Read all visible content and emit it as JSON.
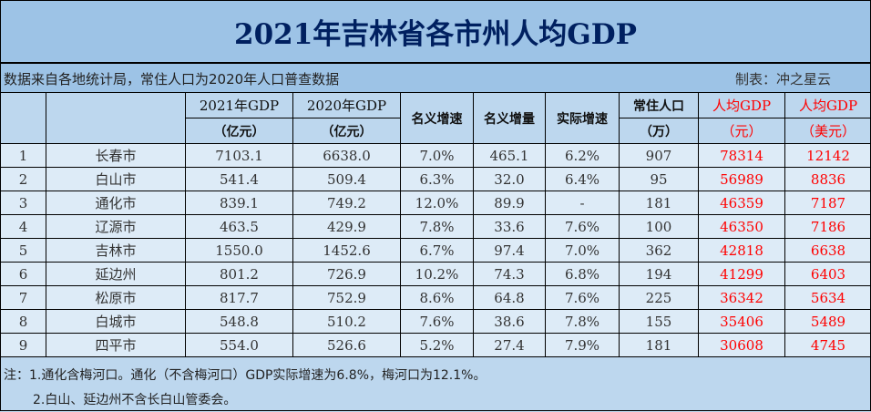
{
  "title": "2021年吉林省各市州人均GDP",
  "source_note": "数据来自各地统计局，常住人口为2020年人口普查数据",
  "author": "制表：冲之星云",
  "headers": {
    "gdp2021": [
      "2021年GDP",
      "（亿元）"
    ],
    "gdp2020": [
      "2020年GDP",
      "（亿元）"
    ],
    "nominal_growth": "名义增速",
    "nominal_increase": "名义增量",
    "real_growth": "实际增速",
    "population": [
      "常住人口",
      "（万）"
    ],
    "per_capita_cny": [
      "人均GDP",
      "（元）"
    ],
    "per_capita_usd": [
      "人均GDP",
      "（美元）"
    ]
  },
  "rows": [
    [
      "1",
      "长春市",
      "7103.1",
      "6638.0",
      "7.0%",
      "465.1",
      "6.2%",
      "907",
      "78314",
      "12142"
    ],
    [
      "2",
      "白山市",
      "541.4",
      "509.4",
      "6.3%",
      "32.0",
      "6.4%",
      "95",
      "56989",
      "8836"
    ],
    [
      "3",
      "通化市",
      "839.1",
      "749.2",
      "12.0%",
      "89.9",
      "-",
      "181",
      "46359",
      "7187"
    ],
    [
      "4",
      "辽源市",
      "463.5",
      "429.9",
      "7.8%",
      "33.6",
      "7.6%",
      "100",
      "46350",
      "7186"
    ],
    [
      "5",
      "吉林市",
      "1550.0",
      "1452.6",
      "6.7%",
      "97.4",
      "7.0%",
      "362",
      "42818",
      "6638"
    ],
    [
      "6",
      "延边州",
      "801.2",
      "726.9",
      "10.2%",
      "74.3",
      "6.8%",
      "194",
      "41299",
      "6403"
    ],
    [
      "7",
      "松原市",
      "817.7",
      "752.9",
      "8.6%",
      "64.8",
      "7.6%",
      "225",
      "36342",
      "5634"
    ],
    [
      "8",
      "白城市",
      "548.8",
      "510.2",
      "7.6%",
      "38.6",
      "7.8%",
      "155",
      "35406",
      "5489"
    ],
    [
      "9",
      "四平市",
      "554.0",
      "526.6",
      "5.2%",
      "27.4",
      "7.9%",
      "181",
      "30608",
      "4745"
    ]
  ],
  "notes": [
    "注：1.通化含梅河口。通化（不含梅河口）GDP实际增速为6.8%，梅河口为12.1%。",
    "2.白山、延边州不含长白山管委会。"
  ],
  "colors": {
    "title": "#002060",
    "highlight": "#ff0000",
    "background": "#9dc3e6",
    "header_bg": "#bdd7ee",
    "row_bg": "#ddebf7"
  }
}
